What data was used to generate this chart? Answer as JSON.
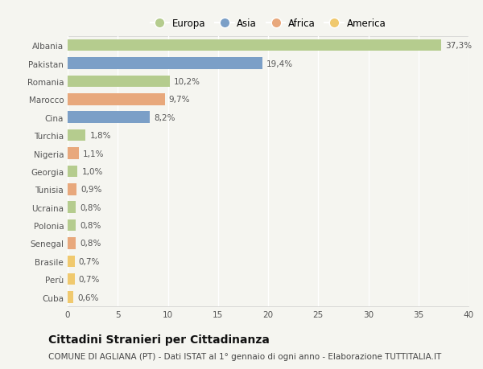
{
  "countries": [
    "Albania",
    "Pakistan",
    "Romania",
    "Marocco",
    "Cina",
    "Turchia",
    "Nigeria",
    "Georgia",
    "Tunisia",
    "Ucraina",
    "Polonia",
    "Senegal",
    "Brasile",
    "Perù",
    "Cuba"
  ],
  "values": [
    37.3,
    19.4,
    10.2,
    9.7,
    8.2,
    1.8,
    1.1,
    1.0,
    0.9,
    0.8,
    0.8,
    0.8,
    0.7,
    0.7,
    0.6
  ],
  "labels": [
    "37,3%",
    "19,4%",
    "10,2%",
    "9,7%",
    "8,2%",
    "1,8%",
    "1,1%",
    "1,0%",
    "0,9%",
    "0,8%",
    "0,8%",
    "0,8%",
    "0,7%",
    "0,7%",
    "0,6%"
  ],
  "continents": [
    "Europa",
    "Asia",
    "Europa",
    "Africa",
    "Asia",
    "Europa",
    "Africa",
    "Europa",
    "Africa",
    "Europa",
    "Europa",
    "Africa",
    "America",
    "America",
    "America"
  ],
  "colors": {
    "Europa": "#b5cc8e",
    "Asia": "#7b9fc7",
    "Africa": "#e8a87c",
    "America": "#f0c96e"
  },
  "legend_order": [
    "Europa",
    "Asia",
    "Africa",
    "America"
  ],
  "xlim": [
    0,
    40
  ],
  "xticks": [
    0,
    5,
    10,
    15,
    20,
    25,
    30,
    35,
    40
  ],
  "title": "Cittadini Stranieri per Cittadinanza",
  "subtitle": "COMUNE DI AGLIANA (PT) - Dati ISTAT al 1° gennaio di ogni anno - Elaborazione TUTTITALIA.IT",
  "background_color": "#f5f5f0",
  "grid_color": "#ffffff",
  "bar_height": 0.65,
  "title_fontsize": 10,
  "subtitle_fontsize": 7.5,
  "label_fontsize": 7.5,
  "tick_fontsize": 7.5,
  "legend_fontsize": 8.5
}
